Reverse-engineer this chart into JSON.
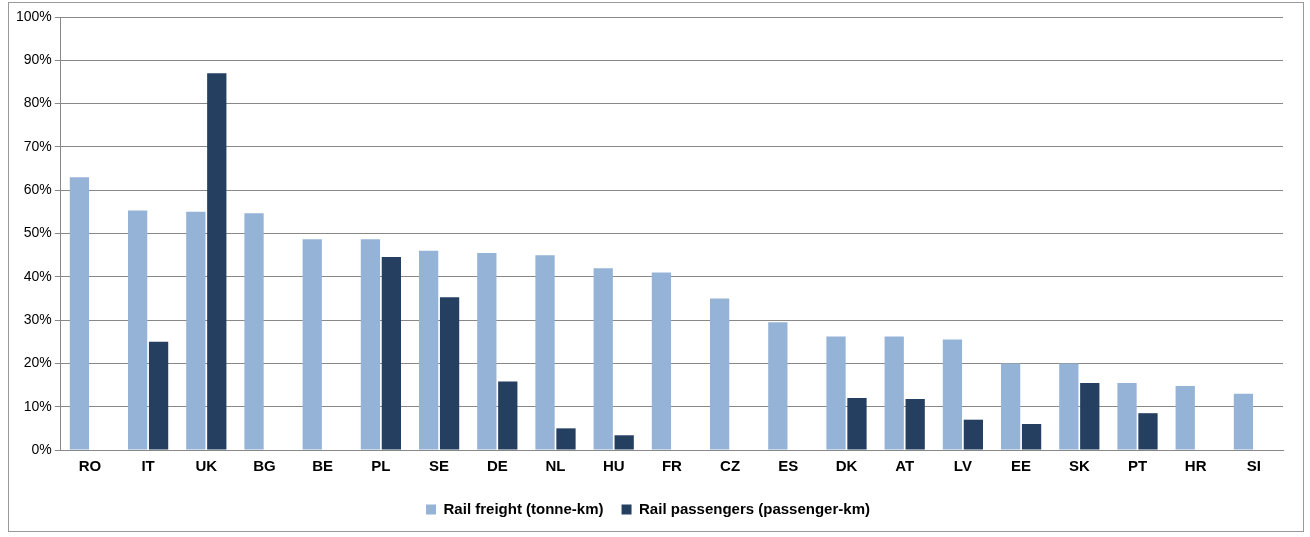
{
  "chart_data": {
    "type": "bar",
    "categories": [
      "RO",
      "IT",
      "UK",
      "BG",
      "BE",
      "PL",
      "SE",
      "DE",
      "NL",
      "HU",
      "FR",
      "CZ",
      "ES",
      "DK",
      "AT",
      "LV",
      "EE",
      "SK",
      "PT",
      "HR",
      "SI"
    ],
    "series": [
      {
        "name": "Rail freight (tonne-km)",
        "color": "#95b3d7",
        "values": [
          63,
          55.3,
          55,
          54.7,
          48.7,
          48.7,
          46,
          45.5,
          45,
          42,
          41,
          35,
          29.5,
          26.2,
          26.2,
          25.5,
          20,
          20,
          15.5,
          14.8,
          13
        ]
      },
      {
        "name": "Rail passengers (passenger-km)",
        "color": "#243f60",
        "values": [
          null,
          25,
          87,
          null,
          null,
          44.6,
          35.3,
          15.8,
          5,
          3.4,
          null,
          null,
          null,
          12,
          11.8,
          7,
          6,
          15.5,
          8.5,
          null,
          null
        ]
      }
    ],
    "ylim": [
      0,
      100
    ],
    "yticks": [
      {
        "value": 0,
        "label": "0%"
      },
      {
        "value": 10,
        "label": "10%"
      },
      {
        "value": 20,
        "label": "20%"
      },
      {
        "value": 30,
        "label": "30%"
      },
      {
        "value": 40,
        "label": "40%"
      },
      {
        "value": 50,
        "label": "50%"
      },
      {
        "value": 60,
        "label": "60%"
      },
      {
        "value": 70,
        "label": "70%"
      },
      {
        "value": 80,
        "label": "80%"
      },
      {
        "value": 90,
        "label": "90%"
      },
      {
        "value": 100,
        "label": "100%"
      }
    ],
    "grid": "y",
    "legend": "bottom"
  }
}
